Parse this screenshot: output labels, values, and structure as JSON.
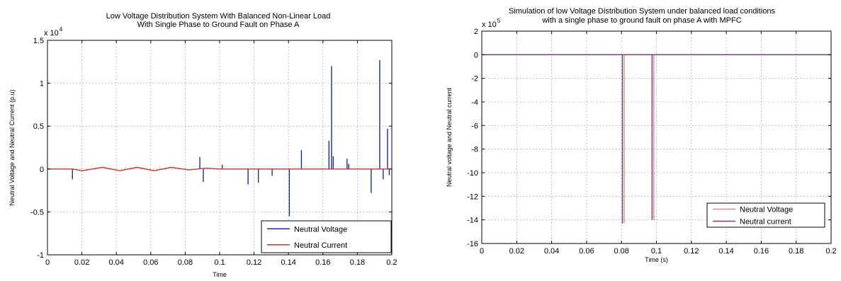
{
  "chart_data": [
    {
      "type": "line",
      "title": [
        "Low Voltage Distribution System With Balanced Non-Linear Load",
        "With Single Phase to Ground Fault on Phase A"
      ],
      "xlabel": "Time",
      "ylabel": "Neutral Voltage and Neutral Current (p.u)",
      "y_multiplier": "x 10",
      "y_exponent": "4",
      "xlim": [
        0,
        0.2
      ],
      "ylim": [
        -1,
        1.5
      ],
      "xticks": [
        "0",
        "0.02",
        "0.04",
        "0.06",
        "0.08",
        "0.1",
        "0.12",
        "0.14",
        "0.16",
        "0.18",
        "0.2"
      ],
      "yticks": [
        "-1",
        "-0.5",
        "0",
        "0.5",
        "1",
        "1.5"
      ],
      "grid": true,
      "legend_position": "bottom-right",
      "series": [
        {
          "name": "Neutral Voltage",
          "color": "#1f2a9c",
          "x": [
            0.0145,
            0.0885,
            0.0905,
            0.1015,
            0.1165,
            0.1225,
            0.1305,
            0.1405,
            0.1475,
            0.1635,
            0.165,
            0.166,
            0.174,
            0.175,
            0.188,
            0.193,
            0.195,
            0.1975,
            0.1985
          ],
          "y": [
            -0.12,
            0.14,
            -0.15,
            0.05,
            -0.18,
            -0.16,
            -0.08,
            -0.55,
            0.22,
            0.33,
            1.2,
            0.15,
            0.12,
            0.06,
            -0.28,
            1.27,
            -0.12,
            0.47,
            -0.07
          ]
        },
        {
          "name": "Neutral Current",
          "color": "#c0392b",
          "x": [
            0.0,
            0.0145,
            0.02,
            0.032,
            0.042,
            0.052,
            0.062,
            0.072,
            0.082,
            0.092,
            0.1,
            0.2
          ],
          "y": [
            0,
            0,
            -0.02,
            0.02,
            -0.02,
            0.02,
            -0.02,
            0.02,
            -0.01,
            0.01,
            0,
            0
          ]
        }
      ]
    },
    {
      "type": "line",
      "title": [
        "Simulation of low Voltage Distribution System  under balanced load conditions",
        "with a single phase to ground fault on phase A with MPFC"
      ],
      "xlabel": "Time (s)",
      "ylabel": "Neutral voltage and Neutral current",
      "y_multiplier": "x 10",
      "y_exponent": "5",
      "xlim": [
        0,
        0.2
      ],
      "ylim": [
        -16,
        2
      ],
      "xticks": [
        "0",
        "0.02",
        "0.04",
        "0.06",
        "0.08",
        "0.1",
        "0.12",
        "0.14",
        "0.16",
        "0.18",
        "0.2"
      ],
      "yticks": [
        "-16",
        "-14",
        "-12",
        "-10",
        "-8",
        "-6",
        "-4",
        "-2",
        "0",
        "2"
      ],
      "grid": true,
      "legend_position": "bottom-right",
      "series": [
        {
          "name": "Neutral Voltage",
          "color": "#d98a8a",
          "x": [
            0.0,
            0.0815,
            0.0815,
            0.0815,
            0.0985,
            0.0985,
            0.0985,
            0.2
          ],
          "y": [
            0,
            0,
            -14.3,
            0,
            0,
            -14.0,
            0,
            0
          ]
        },
        {
          "name": "Neutral current",
          "color": "#7a3a7a",
          "x": [
            0.0,
            0.0805,
            0.0805,
            0.0805,
            0.0975,
            0.0975,
            0.0975,
            0.2
          ],
          "y": [
            0,
            0,
            -14.3,
            0,
            0,
            -14.0,
            0,
            0
          ]
        }
      ]
    }
  ]
}
